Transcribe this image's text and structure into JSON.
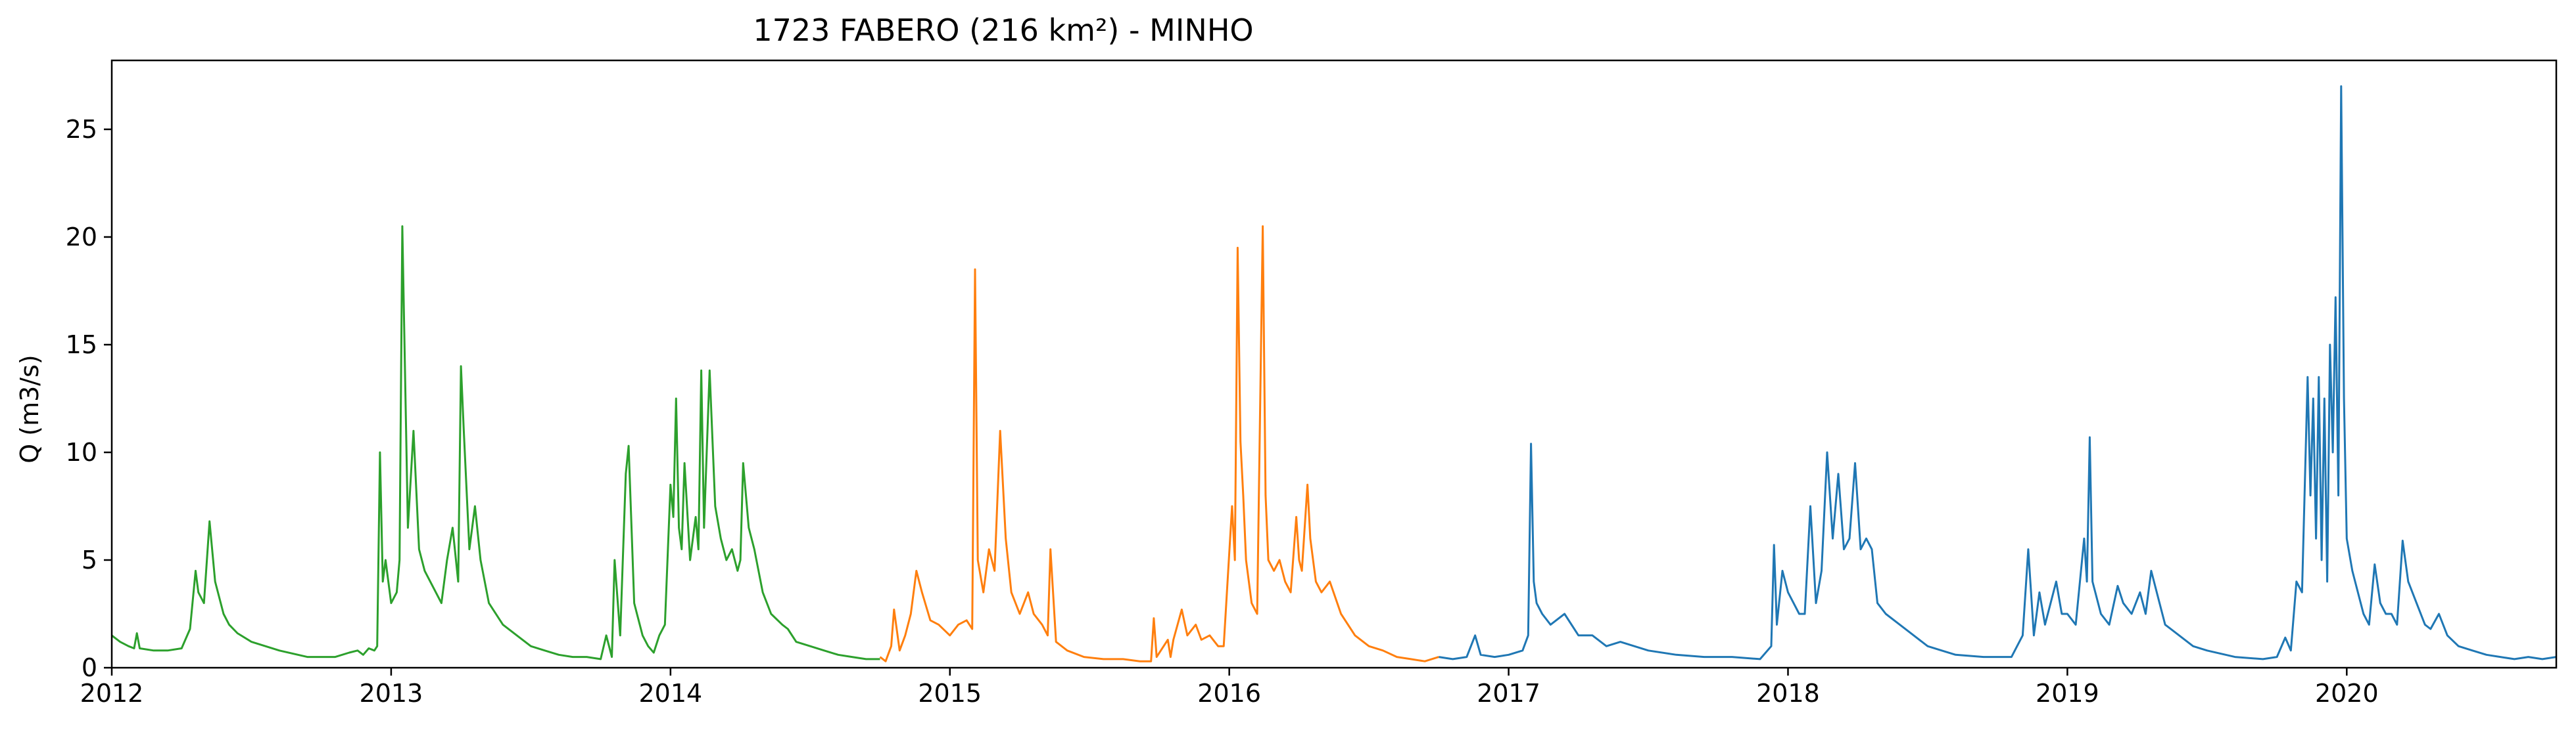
{
  "chart_data": {
    "type": "line",
    "title": "1723 FABERO (216 km²) - MINHO",
    "xlabel": "",
    "ylabel": "Q (m3/s)",
    "xlim": [
      2012.0,
      2020.75
    ],
    "ylim": [
      0,
      28.2
    ],
    "x_ticks": [
      2012,
      2013,
      2014,
      2015,
      2016,
      2017,
      2018,
      2019,
      2020
    ],
    "x_tick_labels": [
      "2012",
      "2013",
      "2014",
      "2015",
      "2016",
      "2017",
      "2018",
      "2019",
      "2020"
    ],
    "y_ticks": [
      0,
      5,
      10,
      15,
      20,
      25
    ],
    "y_tick_labels": [
      "0",
      "5",
      "10",
      "15",
      "20",
      "25"
    ],
    "grid": false,
    "legend": "none",
    "series": [
      {
        "color": "#2ca02c",
        "x": [
          2012.0,
          2012.03,
          2012.06,
          2012.08,
          2012.09,
          2012.1,
          2012.15,
          2012.2,
          2012.25,
          2012.28,
          2012.3,
          2012.31,
          2012.33,
          2012.35,
          2012.37,
          2012.4,
          2012.42,
          2012.45,
          2012.5,
          2012.6,
          2012.7,
          2012.8,
          2012.85,
          2012.88,
          2012.9,
          2012.92,
          2012.94,
          2012.95,
          2012.96,
          2012.97,
          2012.98,
          2013.0,
          2013.02,
          2013.03,
          2013.04,
          2013.06,
          2013.08,
          2013.1,
          2013.12,
          2013.14,
          2013.16,
          2013.18,
          2013.2,
          2013.22,
          2013.24,
          2013.25,
          2013.26,
          2013.28,
          2013.3,
          2013.32,
          2013.35,
          2013.4,
          2013.45,
          2013.5,
          2013.55,
          2013.6,
          2013.65,
          2013.7,
          2013.75,
          2013.77,
          2013.79,
          2013.8,
          2013.82,
          2013.84,
          2013.85,
          2013.87,
          2013.88,
          2013.9,
          2013.92,
          2013.94,
          2013.96,
          2013.98,
          2014.0,
          2014.01,
          2014.02,
          2014.03,
          2014.04,
          2014.05,
          2014.07,
          2014.09,
          2014.1,
          2014.11,
          2014.12,
          2014.14,
          2014.16,
          2014.18,
          2014.2,
          2014.22,
          2014.24,
          2014.25,
          2014.26,
          2014.28,
          2014.3,
          2014.33,
          2014.36,
          2014.4,
          2014.42,
          2014.45,
          2014.5,
          2014.55,
          2014.6,
          2014.65,
          2014.7,
          2014.75
        ],
        "values": [
          1.5,
          1.2,
          1.0,
          0.9,
          1.6,
          0.9,
          0.8,
          0.8,
          0.9,
          1.8,
          4.5,
          3.5,
          3.0,
          6.8,
          4.0,
          2.5,
          2.0,
          1.6,
          1.2,
          0.8,
          0.5,
          0.5,
          0.7,
          0.8,
          0.6,
          0.9,
          0.8,
          1.0,
          10.0,
          4.0,
          5.0,
          3.0,
          3.5,
          5.0,
          20.5,
          6.5,
          11.0,
          5.5,
          4.5,
          4.0,
          3.5,
          3.0,
          5.0,
          6.5,
          4.0,
          14.0,
          11.0,
          5.5,
          7.5,
          5.0,
          3.0,
          2.0,
          1.5,
          1.0,
          0.8,
          0.6,
          0.5,
          0.5,
          0.4,
          1.5,
          0.5,
          5.0,
          1.5,
          9.0,
          10.3,
          3.0,
          2.5,
          1.5,
          1.0,
          0.7,
          1.5,
          2.0,
          8.5,
          7.0,
          12.5,
          6.5,
          5.5,
          9.5,
          5.0,
          7.0,
          5.5,
          13.8,
          6.5,
          13.8,
          7.5,
          6.0,
          5.0,
          5.5,
          4.5,
          5.0,
          9.5,
          6.5,
          5.5,
          3.5,
          2.5,
          2.0,
          1.8,
          1.2,
          1.0,
          0.8,
          0.6,
          0.5,
          0.4,
          0.4
        ]
      },
      {
        "color": "#ff7f0e",
        "x": [
          2014.75,
          2014.77,
          2014.79,
          2014.8,
          2014.82,
          2014.84,
          2014.86,
          2014.88,
          2014.9,
          2014.93,
          2014.96,
          2015.0,
          2015.03,
          2015.06,
          2015.08,
          2015.09,
          2015.1,
          2015.12,
          2015.14,
          2015.16,
          2015.18,
          2015.2,
          2015.22,
          2015.25,
          2015.28,
          2015.3,
          2015.33,
          2015.35,
          2015.36,
          2015.38,
          2015.42,
          2015.48,
          2015.55,
          2015.62,
          2015.68,
          2015.72,
          2015.73,
          2015.74,
          2015.78,
          2015.79,
          2015.8,
          2015.83,
          2015.85,
          2015.88,
          2015.9,
          2015.93,
          2015.96,
          2015.98,
          2016.01,
          2016.02,
          2016.03,
          2016.04,
          2016.05,
          2016.06,
          2016.08,
          2016.1,
          2016.12,
          2016.13,
          2016.14,
          2016.16,
          2016.18,
          2016.2,
          2016.22,
          2016.24,
          2016.25,
          2016.26,
          2016.28,
          2016.29,
          2016.31,
          2016.33,
          2016.36,
          2016.4,
          2016.45,
          2016.5,
          2016.55,
          2016.6,
          2016.65,
          2016.7,
          2016.75
        ],
        "values": [
          0.5,
          0.3,
          1.0,
          2.7,
          0.8,
          1.5,
          2.5,
          4.5,
          3.5,
          2.2,
          2.0,
          1.5,
          2.0,
          2.2,
          1.8,
          18.5,
          5.0,
          3.5,
          5.5,
          4.5,
          11.0,
          6.0,
          3.5,
          2.5,
          3.5,
          2.5,
          2.0,
          1.5,
          5.5,
          1.2,
          0.8,
          0.5,
          0.4,
          0.4,
          0.3,
          0.3,
          2.3,
          0.5,
          1.3,
          0.5,
          1.3,
          2.7,
          1.5,
          2.0,
          1.3,
          1.5,
          1.0,
          1.0,
          7.5,
          5.0,
          19.5,
          10.5,
          8.0,
          5.0,
          3.0,
          2.5,
          20.5,
          8.0,
          5.0,
          4.5,
          5.0,
          4.0,
          3.5,
          7.0,
          5.0,
          4.5,
          8.5,
          6.0,
          4.0,
          3.5,
          4.0,
          2.5,
          1.5,
          1.0,
          0.8,
          0.5,
          0.4,
          0.3,
          0.5
        ]
      },
      {
        "color": "#1f77b4",
        "x": [
          2016.75,
          2016.8,
          2016.85,
          2016.88,
          2016.9,
          2016.95,
          2017.0,
          2017.05,
          2017.07,
          2017.08,
          2017.09,
          2017.1,
          2017.12,
          2017.15,
          2017.2,
          2017.25,
          2017.3,
          2017.35,
          2017.4,
          2017.5,
          2017.6,
          2017.7,
          2017.8,
          2017.9,
          2017.94,
          2017.95,
          2017.96,
          2017.98,
          2018.0,
          2018.02,
          2018.04,
          2018.06,
          2018.08,
          2018.1,
          2018.12,
          2018.14,
          2018.16,
          2018.18,
          2018.2,
          2018.22,
          2018.24,
          2018.26,
          2018.28,
          2018.3,
          2018.32,
          2018.35,
          2018.4,
          2018.45,
          2018.5,
          2018.55,
          2018.6,
          2018.7,
          2018.8,
          2018.84,
          2018.86,
          2018.88,
          2018.9,
          2018.92,
          2018.94,
          2018.96,
          2018.98,
          2019.0,
          2019.03,
          2019.06,
          2019.07,
          2019.08,
          2019.09,
          2019.1,
          2019.12,
          2019.15,
          2019.18,
          2019.2,
          2019.23,
          2019.26,
          2019.28,
          2019.3,
          2019.33,
          2019.35,
          2019.4,
          2019.45,
          2019.5,
          2019.6,
          2019.7,
          2019.75,
          2019.78,
          2019.8,
          2019.82,
          2019.84,
          2019.86,
          2019.87,
          2019.88,
          2019.89,
          2019.9,
          2019.91,
          2019.92,
          2019.93,
          2019.94,
          2019.95,
          2019.96,
          2019.97,
          2019.98,
          2019.99,
          2020.0,
          2020.02,
          2020.04,
          2020.06,
          2020.08,
          2020.1,
          2020.12,
          2020.14,
          2020.16,
          2020.18,
          2020.2,
          2020.22,
          2020.25,
          2020.28,
          2020.3,
          2020.33,
          2020.36,
          2020.4,
          2020.45,
          2020.5,
          2020.55,
          2020.6,
          2020.65,
          2020.7,
          2020.75
        ],
        "values": [
          0.5,
          0.4,
          0.5,
          1.5,
          0.6,
          0.5,
          0.6,
          0.8,
          1.5,
          10.4,
          4.0,
          3.0,
          2.5,
          2.0,
          2.5,
          1.5,
          1.5,
          1.0,
          1.2,
          0.8,
          0.6,
          0.5,
          0.5,
          0.4,
          1.0,
          5.7,
          2.0,
          4.5,
          3.5,
          3.0,
          2.5,
          2.5,
          7.5,
          3.0,
          4.5,
          10.0,
          6.0,
          9.0,
          5.5,
          6.0,
          9.5,
          5.5,
          6.0,
          5.5,
          3.0,
          2.5,
          2.0,
          1.5,
          1.0,
          0.8,
          0.6,
          0.5,
          0.5,
          1.5,
          5.5,
          1.5,
          3.5,
          2.0,
          3.0,
          4.0,
          2.5,
          2.5,
          2.0,
          6.0,
          4.0,
          10.7,
          4.0,
          3.5,
          2.5,
          2.0,
          3.8,
          3.0,
          2.5,
          3.5,
          2.5,
          4.5,
          3.0,
          2.0,
          1.5,
          1.0,
          0.8,
          0.5,
          0.4,
          0.5,
          1.4,
          0.8,
          4.0,
          3.5,
          13.5,
          8.0,
          12.5,
          6.0,
          13.5,
          5.0,
          12.5,
          4.0,
          15.0,
          10.0,
          17.2,
          8.0,
          27.0,
          12.5,
          6.0,
          4.5,
          3.5,
          2.5,
          2.0,
          4.8,
          3.0,
          2.5,
          2.5,
          2.0,
          5.9,
          4.0,
          3.0,
          2.0,
          1.8,
          2.5,
          1.5,
          1.0,
          0.8,
          0.6,
          0.5,
          0.4,
          0.5,
          0.4,
          0.5
        ]
      }
    ]
  }
}
